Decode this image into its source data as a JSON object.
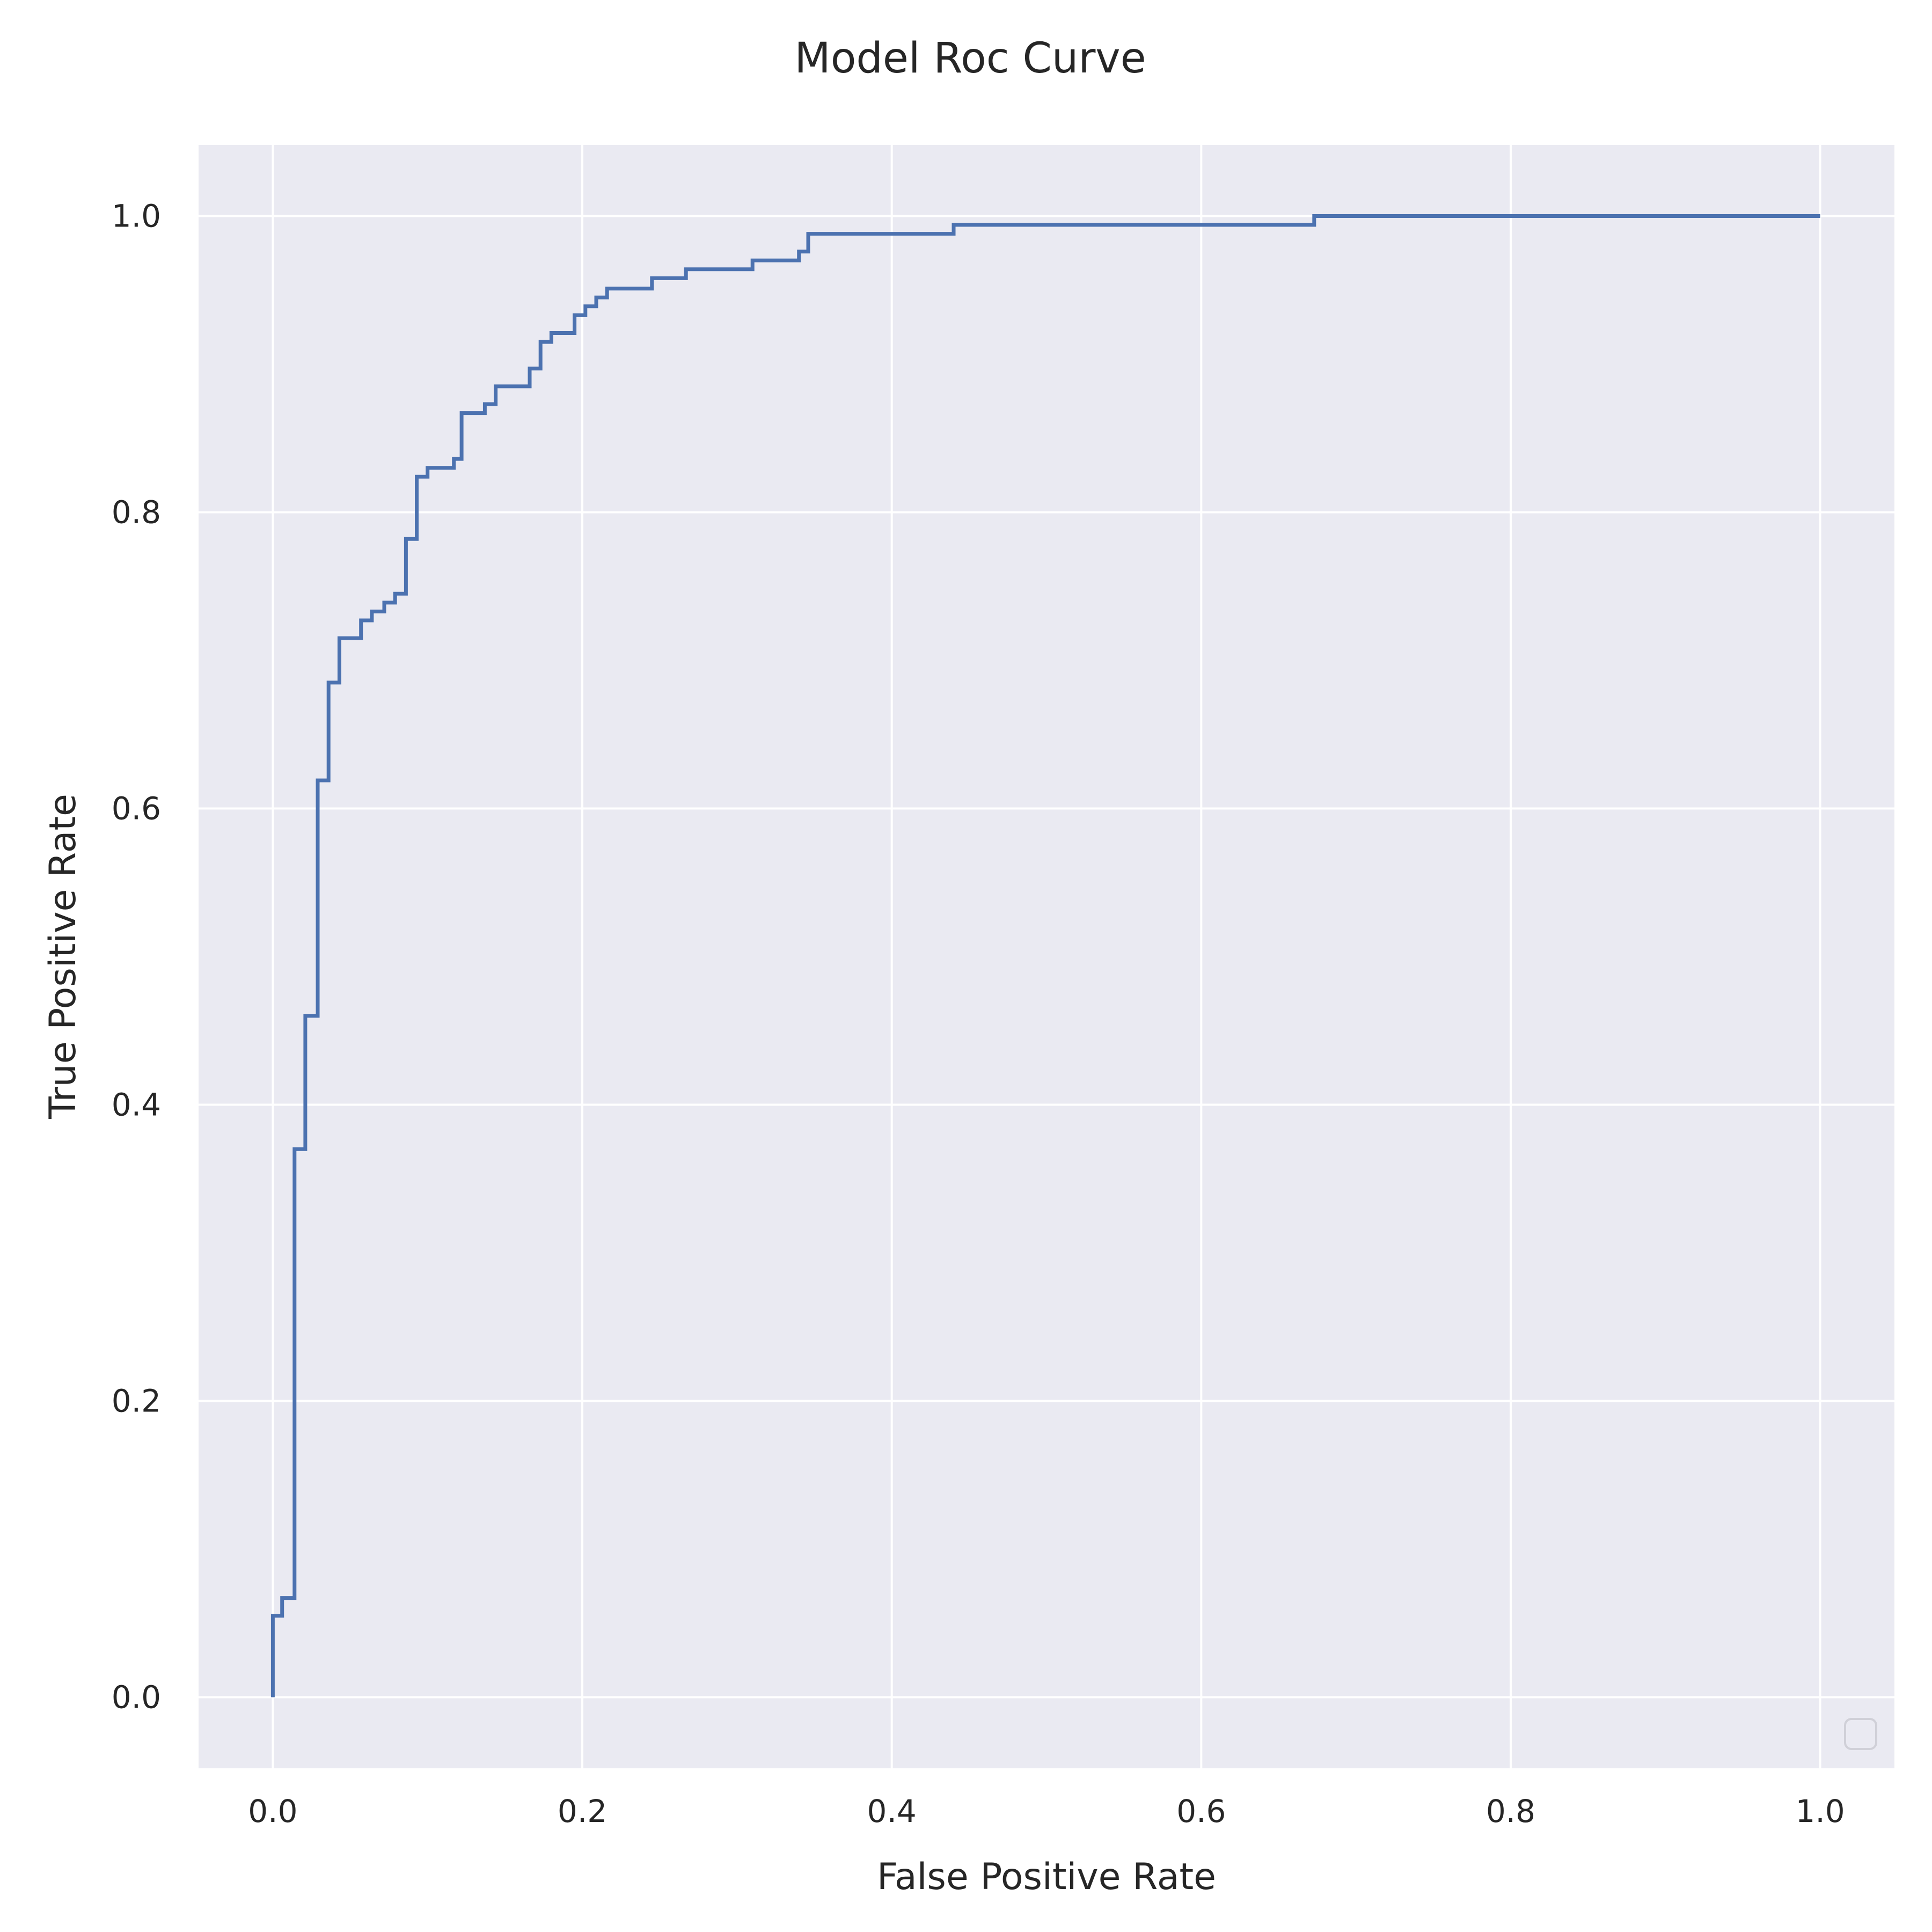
{
  "chart_data": {
    "type": "line",
    "title": "Model Roc Curve",
    "xlabel": "False Positive Rate",
    "ylabel": "True Positive Rate",
    "xlim": [
      -0.048,
      1.048
    ],
    "ylim": [
      -0.048,
      1.048
    ],
    "x_ticks": [
      0.0,
      0.2,
      0.4,
      0.6,
      0.8,
      1.0
    ],
    "y_ticks": [
      0.0,
      0.2,
      0.4,
      0.6,
      0.8,
      1.0
    ],
    "x_tick_labels": [
      "0.0",
      "0.2",
      "0.4",
      "0.6",
      "0.8",
      "1.0"
    ],
    "y_tick_labels": [
      "0.0",
      "0.2",
      "0.4",
      "0.6",
      "0.8",
      "1.0"
    ],
    "grid": true,
    "legend_position": "lower-right",
    "background_color": "#eaeaf2",
    "grid_color": "#ffffff",
    "series": [
      {
        "color": "#4c72b0",
        "x": [
          0.0,
          0.0,
          0.006,
          0.006,
          0.014,
          0.014,
          0.021,
          0.021,
          0.029,
          0.029,
          0.036,
          0.036,
          0.043,
          0.043,
          0.057,
          0.057,
          0.064,
          0.064,
          0.072,
          0.072,
          0.079,
          0.079,
          0.086,
          0.086,
          0.093,
          0.093,
          0.1,
          0.1,
          0.117,
          0.117,
          0.122,
          0.122,
          0.137,
          0.137,
          0.144,
          0.144,
          0.166,
          0.166,
          0.173,
          0.173,
          0.18,
          0.18,
          0.195,
          0.195,
          0.202,
          0.202,
          0.209,
          0.209,
          0.216,
          0.216,
          0.245,
          0.245,
          0.267,
          0.267,
          0.31,
          0.31,
          0.34,
          0.34,
          0.346,
          0.346,
          0.44,
          0.44,
          0.673,
          0.673,
          1.0
        ],
        "y": [
          0.0,
          0.055,
          0.055,
          0.067,
          0.067,
          0.37,
          0.37,
          0.46,
          0.46,
          0.619,
          0.619,
          0.685,
          0.685,
          0.715,
          0.715,
          0.727,
          0.727,
          0.733,
          0.733,
          0.739,
          0.739,
          0.745,
          0.745,
          0.782,
          0.782,
          0.824,
          0.824,
          0.83,
          0.83,
          0.836,
          0.836,
          0.867,
          0.867,
          0.873,
          0.873,
          0.885,
          0.885,
          0.897,
          0.897,
          0.915,
          0.915,
          0.921,
          0.921,
          0.933,
          0.933,
          0.939,
          0.939,
          0.945,
          0.945,
          0.951,
          0.951,
          0.958,
          0.958,
          0.964,
          0.964,
          0.97,
          0.97,
          0.976,
          0.976,
          0.988,
          0.988,
          0.994,
          0.994,
          1.0,
          1.0
        ]
      }
    ]
  }
}
